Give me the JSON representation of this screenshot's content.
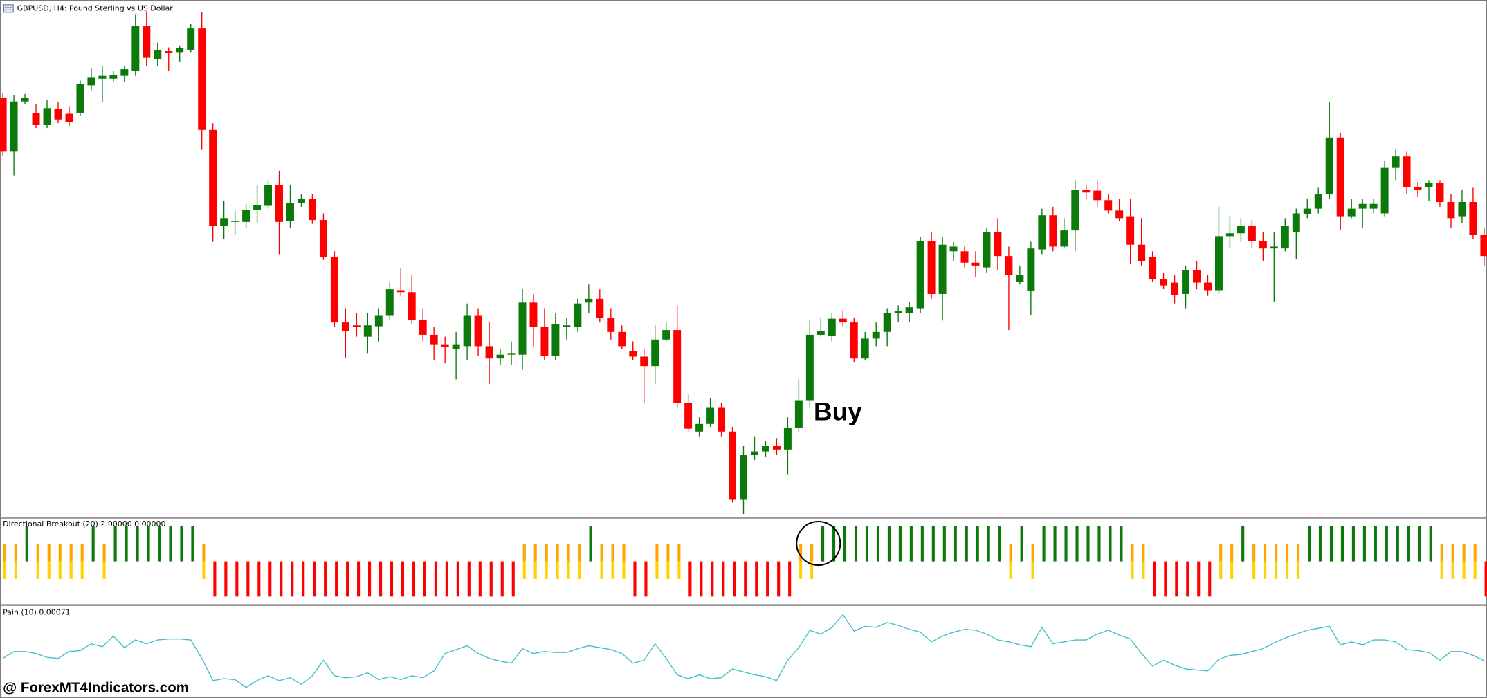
{
  "chart_data": [
    {
      "type": "candlestick",
      "title": "GBPUSD, H4:  Pound Sterling vs US Dollar",
      "annotation": "Buy",
      "up_color": "#0b7a0b",
      "down_color": "#ff0000",
      "ylim": [
        455,
        998
      ],
      "open": [
        897,
        840,
        893,
        881,
        868,
        885,
        880,
        881,
        910,
        917,
        917,
        920,
        925,
        973,
        938,
        946,
        945,
        947,
        970,
        863,
        762,
        766,
        766,
        779,
        783,
        805,
        767,
        786,
        790,
        768,
        729,
        660,
        657,
        645,
        656,
        667,
        694,
        692,
        663,
        647,
        637,
        632,
        635,
        667,
        635,
        622,
        626,
        626,
        681,
        655,
        625,
        655,
        655,
        681,
        685,
        665,
        650,
        630,
        624,
        614,
        642,
        652,
        575,
        545,
        553,
        570,
        545,
        473,
        520,
        524,
        530,
        526,
        549,
        578,
        647,
        646,
        664,
        660,
        622,
        643,
        650,
        670,
        670,
        675,
        746,
        690,
        735,
        735,
        723,
        718,
        755,
        730,
        703,
        693,
        737,
        773,
        740,
        757,
        800,
        799,
        789,
        778,
        772,
        742,
        729,
        706,
        702,
        690,
        715,
        702,
        694,
        751,
        754,
        762,
        746,
        738,
        738,
        755,
        774,
        780,
        795,
        855,
        772,
        780,
        780,
        775,
        823,
        835,
        803,
        803,
        807,
        787,
        772,
        787,
        752
      ],
      "high": [
        902,
        900,
        901,
        890,
        895,
        892,
        888,
        915,
        928,
        930,
        925,
        930,
        985,
        988,
        955,
        950,
        952,
        975,
        987,
        870,
        788,
        778,
        785,
        805,
        810,
        820,
        805,
        795,
        795,
        775,
        735,
        675,
        670,
        670,
        675,
        703,
        717,
        710,
        675,
        655,
        645,
        650,
        680,
        675,
        660,
        632,
        640,
        695,
        690,
        675,
        670,
        665,
        685,
        700,
        695,
        675,
        657,
        640,
        632,
        657,
        660,
        678,
        585,
        560,
        580,
        575,
        550,
        530,
        540,
        535,
        538,
        560,
        600,
        663,
        665,
        670,
        673,
        665,
        650,
        660,
        675,
        678,
        682,
        750,
        755,
        750,
        745,
        740,
        735,
        760,
        770,
        740,
        720,
        745,
        780,
        782,
        770,
        810,
        805,
        810,
        795,
        790,
        790,
        770,
        735,
        712,
        710,
        720,
        725,
        710,
        782,
        772,
        770,
        768,
        755,
        755,
        770,
        780,
        790,
        802,
        892,
        860,
        790,
        790,
        790,
        830,
        842,
        840,
        808,
        810,
        810,
        795,
        800,
        802,
        760
      ],
      "low": [
        835,
        815,
        890,
        865,
        865,
        870,
        867,
        878,
        905,
        892,
        914,
        914,
        920,
        930,
        930,
        925,
        935,
        945,
        842,
        745,
        748,
        752,
        760,
        765,
        780,
        732,
        760,
        782,
        764,
        726,
        655,
        623,
        645,
        627,
        640,
        662,
        688,
        658,
        640,
        620,
        617,
        600,
        620,
        625,
        595,
        615,
        615,
        610,
        635,
        620,
        620,
        642,
        650,
        670,
        660,
        642,
        632,
        620,
        575,
        595,
        640,
        570,
        545,
        540,
        550,
        540,
        470,
        458,
        515,
        518,
        520,
        500,
        545,
        570,
        645,
        640,
        655,
        618,
        620,
        635,
        635,
        660,
        660,
        670,
        685,
        662,
        725,
        718,
        708,
        712,
        715,
        652,
        700,
        668,
        732,
        735,
        738,
        735,
        790,
        782,
        775,
        767,
        722,
        720,
        703,
        695,
        680,
        675,
        695,
        688,
        690,
        738,
        745,
        738,
        725,
        682,
        735,
        727,
        770,
        775,
        790,
        757,
        770,
        760,
        775,
        772,
        810,
        795,
        792,
        788,
        782,
        760,
        765,
        748,
        720
      ],
      "close": [
        840,
        893,
        897,
        868,
        886,
        874,
        871,
        911,
        918,
        920,
        921,
        927,
        973,
        939,
        947,
        944,
        949,
        970,
        863,
        762,
        770,
        767,
        779,
        784,
        805,
        766,
        786,
        790,
        768,
        729,
        660,
        651,
        655,
        657,
        667,
        695,
        692,
        663,
        647,
        637,
        634,
        637,
        667,
        635,
        622,
        626,
        627,
        681,
        655,
        625,
        658,
        657,
        680,
        685,
        665,
        650,
        635,
        624,
        614,
        642,
        652,
        575,
        548,
        553,
        570,
        545,
        473,
        520,
        524,
        530,
        526,
        549,
        578,
        647,
        651,
        664,
        660,
        622,
        643,
        650,
        670,
        672,
        676,
        746,
        690,
        742,
        740,
        723,
        720,
        755,
        730,
        710,
        710,
        738,
        773,
        740,
        757,
        800,
        797,
        789,
        778,
        770,
        742,
        725,
        706,
        699,
        689,
        715,
        702,
        694,
        751,
        754,
        762,
        746,
        738,
        740,
        762,
        775,
        780,
        795,
        855,
        772,
        780,
        785,
        785,
        823,
        835,
        803,
        800,
        807,
        787,
        770,
        787,
        752,
        730
      ]
    },
    {
      "type": "bar",
      "title": "Directional Breakout (20) 2.00000 0.00000",
      "ylim": [
        -2.43,
        2.43
      ],
      "series": [
        {
          "color": "#0b7a0b",
          "values": [
            null,
            null,
            2,
            null,
            null,
            null,
            null,
            null,
            2,
            null,
            2,
            2,
            2,
            2,
            2,
            2,
            2,
            2,
            null,
            null,
            null,
            null,
            null,
            null,
            null,
            null,
            null,
            null,
            null,
            null,
            null,
            null,
            null,
            null,
            null,
            null,
            null,
            null,
            null,
            null,
            null,
            null,
            null,
            null,
            null,
            null,
            null,
            null,
            null,
            null,
            null,
            null,
            null,
            2,
            null,
            null,
            null,
            null,
            null,
            null,
            null,
            null,
            null,
            null,
            null,
            null,
            null,
            null,
            null,
            null,
            null,
            null,
            null,
            null,
            2,
            2,
            2,
            2,
            2,
            2,
            2,
            2,
            2,
            2,
            2,
            2,
            2,
            2,
            2,
            2,
            2,
            null,
            2,
            null,
            2,
            2,
            2,
            2,
            2,
            2,
            2,
            2,
            null,
            null,
            null,
            null,
            null,
            null,
            null,
            null,
            null,
            null,
            2,
            null,
            null,
            null,
            null,
            null,
            2,
            2,
            2,
            2,
            2,
            2,
            2,
            2,
            2,
            2,
            2,
            2,
            null,
            null,
            null,
            null,
            null
          ]
        },
        {
          "color": "#ffa500",
          "values": [
            1,
            1,
            null,
            1,
            1,
            1,
            1,
            1,
            null,
            1,
            null,
            null,
            null,
            null,
            null,
            null,
            null,
            null,
            1,
            null,
            null,
            null,
            null,
            null,
            null,
            null,
            null,
            null,
            null,
            null,
            null,
            null,
            null,
            null,
            null,
            null,
            null,
            null,
            null,
            null,
            null,
            null,
            null,
            null,
            null,
            null,
            null,
            1,
            1,
            1,
            1,
            1,
            1,
            null,
            1,
            1,
            1,
            null,
            null,
            1,
            1,
            1,
            null,
            null,
            null,
            null,
            null,
            null,
            null,
            null,
            null,
            null,
            1,
            1,
            null,
            null,
            null,
            null,
            null,
            null,
            null,
            null,
            null,
            null,
            null,
            null,
            null,
            null,
            null,
            null,
            null,
            1,
            null,
            1,
            null,
            null,
            null,
            null,
            null,
            null,
            null,
            null,
            1,
            1,
            null,
            null,
            null,
            null,
            null,
            null,
            1,
            1,
            null,
            1,
            1,
            1,
            1,
            1,
            null,
            null,
            null,
            null,
            null,
            null,
            null,
            null,
            null,
            null,
            null,
            null,
            1,
            1,
            1,
            1,
            null
          ]
        },
        {
          "color": "#ffd200",
          "values": [
            -1,
            -1,
            null,
            -1,
            -1,
            -1,
            -1,
            -1,
            null,
            -1,
            null,
            null,
            null,
            null,
            null,
            null,
            null,
            null,
            -1,
            null,
            null,
            null,
            null,
            null,
            null,
            null,
            null,
            null,
            null,
            null,
            null,
            null,
            null,
            null,
            null,
            null,
            null,
            null,
            null,
            null,
            null,
            null,
            null,
            null,
            null,
            null,
            null,
            -1,
            -1,
            -1,
            -1,
            -1,
            -1,
            null,
            -1,
            -1,
            -1,
            null,
            null,
            -1,
            -1,
            -1,
            null,
            null,
            null,
            null,
            null,
            null,
            null,
            null,
            null,
            null,
            -1,
            -1,
            null,
            null,
            null,
            null,
            null,
            null,
            null,
            null,
            null,
            null,
            null,
            null,
            null,
            null,
            null,
            null,
            null,
            -1,
            null,
            -1,
            null,
            null,
            null,
            null,
            null,
            null,
            null,
            null,
            -1,
            -1,
            null,
            null,
            null,
            null,
            null,
            null,
            -1,
            -1,
            null,
            -1,
            -1,
            -1,
            -1,
            -1,
            null,
            null,
            null,
            null,
            null,
            null,
            null,
            null,
            null,
            null,
            null,
            null,
            -1,
            -1,
            -1,
            -1,
            null
          ]
        },
        {
          "color": "#ff0000",
          "values": [
            null,
            null,
            null,
            null,
            null,
            null,
            null,
            null,
            null,
            null,
            null,
            null,
            null,
            null,
            null,
            null,
            null,
            null,
            null,
            -2,
            -2,
            -2,
            -2,
            -2,
            -2,
            -2,
            -2,
            -2,
            -2,
            -2,
            -2,
            -2,
            -2,
            -2,
            -2,
            -2,
            -2,
            -2,
            -2,
            -2,
            -2,
            -2,
            -2,
            -2,
            -2,
            -2,
            -2,
            null,
            null,
            null,
            null,
            null,
            null,
            null,
            null,
            null,
            null,
            -2,
            -2,
            null,
            null,
            null,
            -2,
            -2,
            -2,
            -2,
            -2,
            -2,
            -2,
            -2,
            -2,
            -2,
            null,
            null,
            null,
            null,
            null,
            null,
            null,
            null,
            null,
            null,
            null,
            null,
            null,
            null,
            null,
            null,
            null,
            null,
            null,
            null,
            null,
            null,
            null,
            null,
            null,
            null,
            null,
            null,
            null,
            null,
            null,
            null,
            -2,
            -2,
            -2,
            -2,
            -2,
            -2,
            null,
            null,
            null,
            null,
            null,
            null,
            null,
            null,
            null,
            null,
            null,
            null,
            null,
            null,
            null,
            null,
            null,
            null,
            null,
            null,
            null,
            null,
            null,
            null,
            -2
          ]
        }
      ]
    },
    {
      "type": "line",
      "title": "Pain (10) 0.00071",
      "color": "#3fbfc8",
      "ylim": [
        -2e-05,
        0.00184
      ],
      "values": [
        0.00076,
        0.0009,
        0.0009,
        0.00086,
        0.00078,
        0.00076,
        0.0009,
        0.00092,
        0.00106,
        0.001,
        0.00122,
        0.00098,
        0.00114,
        0.00106,
        0.00114,
        0.00116,
        0.00116,
        0.00114,
        0.00076,
        0.0003,
        0.00034,
        0.00032,
        0.00016,
        0.0003,
        0.0004,
        0.0003,
        0.00036,
        0.00022,
        0.0004,
        0.00072,
        0.0004,
        0.00036,
        0.00038,
        0.00046,
        0.00032,
        0.00038,
        0.00032,
        0.0004,
        0.00036,
        0.0005,
        0.00086,
        0.00094,
        0.00102,
        0.00086,
        0.00076,
        0.0007,
        0.00066,
        0.00096,
        0.00086,
        0.0009,
        0.00088,
        0.00088,
        0.00096,
        0.00102,
        0.00098,
        0.00094,
        0.00086,
        0.00066,
        0.00072,
        0.00106,
        0.00076,
        0.00042,
        0.00034,
        0.00042,
        0.00034,
        0.00036,
        0.00054,
        0.00048,
        0.00042,
        0.00038,
        0.0003,
        0.00072,
        0.00098,
        0.00134,
        0.00126,
        0.0014,
        0.00166,
        0.00132,
        0.00142,
        0.0014,
        0.0015,
        0.00144,
        0.00136,
        0.0013,
        0.0011,
        0.00122,
        0.0013,
        0.00136,
        0.00134,
        0.00126,
        0.00114,
        0.0011,
        0.00104,
        0.001,
        0.0014,
        0.00106,
        0.0011,
        0.00114,
        0.00114,
        0.00126,
        0.00134,
        0.00124,
        0.00116,
        0.00086,
        0.0006,
        0.00072,
        0.00062,
        0.00054,
        0.00052,
        0.0005,
        0.00074,
        0.00082,
        0.00084,
        0.0009,
        0.00096,
        0.00108,
        0.00118,
        0.00126,
        0.00134,
        0.00138,
        0.00142,
        0.00104,
        0.0011,
        0.00104,
        0.00114,
        0.00114,
        0.0011,
        0.00094,
        0.00092,
        0.00088,
        0.00072,
        0.0009,
        0.0009,
        0.00082,
        0.00071
      ]
    }
  ],
  "watermark": "@ ForexMT4Indicators.com"
}
